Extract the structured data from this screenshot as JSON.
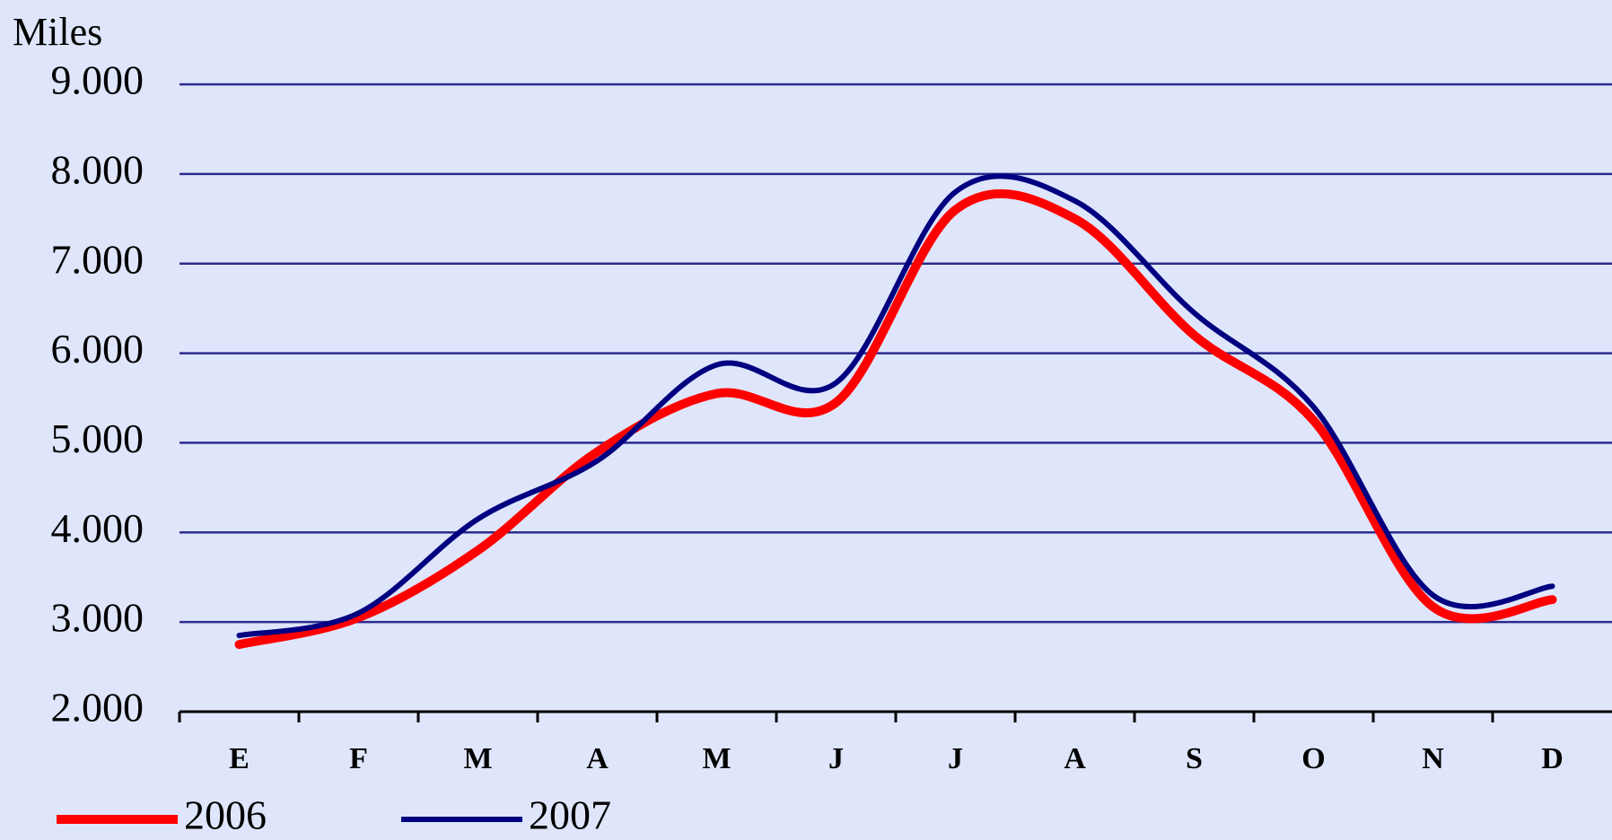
{
  "chart_data": {
    "type": "line",
    "y_label": "Miles",
    "categories": [
      "E",
      "F",
      "M",
      "A",
      "M",
      "J",
      "J",
      "A",
      "S",
      "O",
      "N",
      "D"
    ],
    "series": [
      {
        "name": "2006",
        "color": "#ff0000",
        "values": [
          2750,
          3050,
          3800,
          4900,
          5550,
          5450,
          7600,
          7500,
          6200,
          5250,
          3170,
          3250
        ]
      },
      {
        "name": "2007",
        "color": "#000080",
        "values": [
          2850,
          3100,
          4150,
          4800,
          5870,
          5670,
          7800,
          7700,
          6450,
          5400,
          3300,
          3400
        ]
      }
    ],
    "ylim": [
      2000,
      9000
    ],
    "yticks": [
      {
        "value": 2000,
        "label": "2.000"
      },
      {
        "value": 3000,
        "label": "3.000"
      },
      {
        "value": 4000,
        "label": "4.000"
      },
      {
        "value": 5000,
        "label": "5.000"
      },
      {
        "value": 6000,
        "label": "6.000"
      },
      {
        "value": 7000,
        "label": "7.000"
      },
      {
        "value": 8000,
        "label": "8.000"
      },
      {
        "value": 9000,
        "label": "9.000"
      }
    ],
    "grid": true
  }
}
